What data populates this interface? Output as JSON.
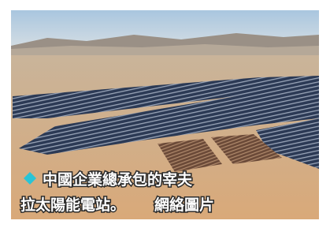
{
  "caption": {
    "lines": [
      "中國企業總承包的宰夫",
      "拉太陽能電站。"
    ],
    "credit": "網絡圖片"
  }
}
